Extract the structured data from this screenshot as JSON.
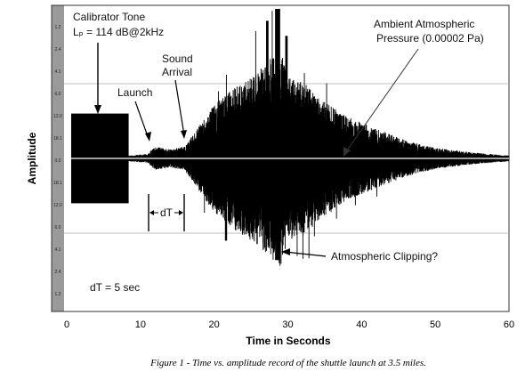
{
  "chart_data": {
    "type": "line",
    "title": "",
    "xlabel": "Time in Seconds",
    "ylabel": "Amplitude",
    "xlim": [
      0,
      60
    ],
    "x_ticks": [
      "0",
      "10",
      "20",
      "30",
      "40",
      "50",
      "60"
    ],
    "y_ticks": [
      "1.2",
      "2.4",
      "4.1",
      "6.0",
      "12.0",
      "18.1",
      "0.0",
      "18.1",
      "12.0",
      "6.0",
      "4.1",
      "2.4",
      "1.2"
    ],
    "clipping_level": 0.5,
    "calibration_level": 0.3,
    "grid": "horizontal reference lines",
    "annotations": {
      "calibrator_line1": "Calibrator Tone",
      "calibrator_line2": "Lₚ = 114 dB@2kHz",
      "launch": "Launch",
      "sound_arrival_1": "Sound",
      "sound_arrival_2": "Arrival",
      "ambient_1": "Ambient Atmospheric",
      "ambient_2": "Pressure (0.00002 Pa)",
      "clipping": "Atmospheric Clipping?",
      "dt_marker": "dT",
      "dt_value": "dT = 5 sec"
    },
    "events": {
      "calibrator_start": 0.6,
      "calibrator_end": 8.4,
      "launch_time": 11.1,
      "sound_arrival_time": 16.1,
      "peak_time": 28.6
    },
    "envelope": [
      {
        "t": 8.4,
        "a": 0.02
      },
      {
        "t": 11.0,
        "a": 0.03
      },
      {
        "t": 12.0,
        "a": 0.08
      },
      {
        "t": 14.0,
        "a": 0.06
      },
      {
        "t": 16.0,
        "a": 0.08
      },
      {
        "t": 18.0,
        "a": 0.22
      },
      {
        "t": 20.0,
        "a": 0.36
      },
      {
        "t": 22.0,
        "a": 0.45
      },
      {
        "t": 24.0,
        "a": 0.52
      },
      {
        "t": 26.0,
        "a": 0.58
      },
      {
        "t": 28.0,
        "a": 0.7
      },
      {
        "t": 29.0,
        "a": 0.72
      },
      {
        "t": 30.0,
        "a": 0.55
      },
      {
        "t": 32.0,
        "a": 0.52
      },
      {
        "t": 35.0,
        "a": 0.38
      },
      {
        "t": 38.0,
        "a": 0.28
      },
      {
        "t": 42.0,
        "a": 0.2
      },
      {
        "t": 46.0,
        "a": 0.12
      },
      {
        "t": 50.0,
        "a": 0.07
      },
      {
        "t": 55.0,
        "a": 0.04
      },
      {
        "t": 60.0,
        "a": 0.02
      }
    ]
  },
  "figure": {
    "caption": "Figure 1 - Time vs. amplitude record of the shuttle launch at 3.5 miles."
  },
  "colors": {
    "signal": "#000000",
    "ref_line": "#aaaaaa",
    "strip": "#9a9a9a"
  }
}
